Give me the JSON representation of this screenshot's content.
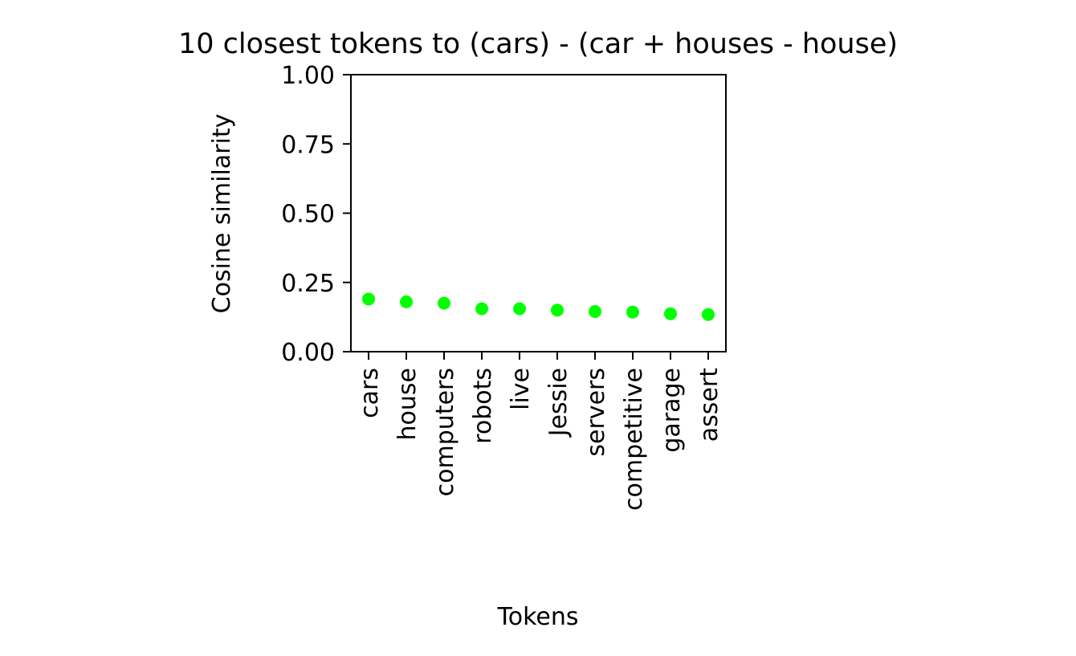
{
  "chart_data": {
    "type": "scatter",
    "title": "10 closest tokens to (cars) - (car + houses - house)",
    "xlabel": "Tokens",
    "ylabel": "Cosine similarity",
    "categories": [
      "cars",
      "house",
      "computers",
      "robots",
      "live",
      "Jessie",
      "servers",
      "competitive",
      "garage",
      "assert"
    ],
    "values": [
      0.19,
      0.18,
      0.175,
      0.155,
      0.155,
      0.15,
      0.145,
      0.143,
      0.137,
      0.134
    ],
    "ylim": [
      0,
      1
    ],
    "yticks": [
      0.0,
      0.25,
      0.5,
      0.75,
      1.0
    ],
    "ytick_labels": [
      "0.00",
      "0.25",
      "0.50",
      "0.75",
      "1.00"
    ],
    "marker_color": "#00ff00",
    "grid": false,
    "legend": false
  }
}
